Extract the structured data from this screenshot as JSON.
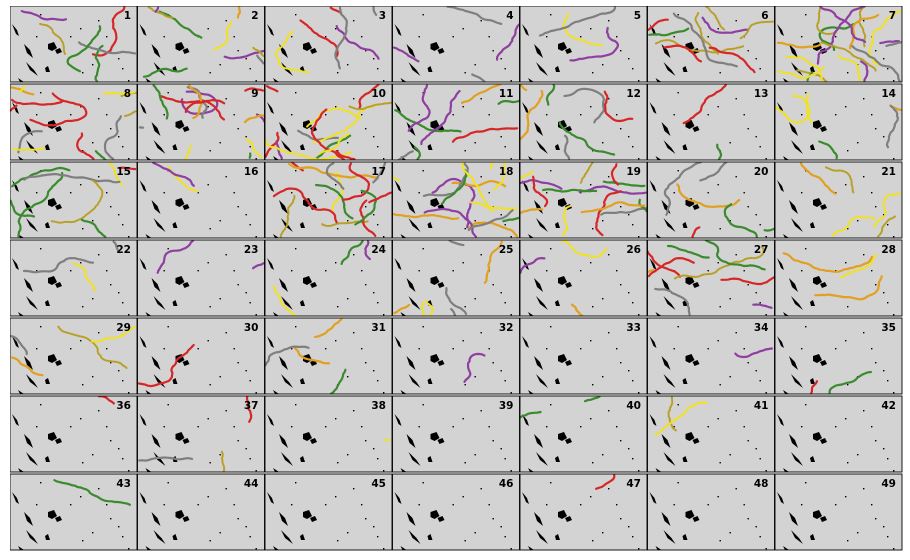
{
  "chart_data": {
    "type": "small-multiples-track-map",
    "layout": {
      "rows": 7,
      "columns": 7
    },
    "panel_labels": [
      "1",
      "2",
      "3",
      "4",
      "5",
      "6",
      "7",
      "8",
      "9",
      "10",
      "11",
      "12",
      "13",
      "14",
      "15",
      "16",
      "17",
      "18",
      "19",
      "20",
      "21",
      "22",
      "23",
      "24",
      "25",
      "26",
      "27",
      "28",
      "29",
      "30",
      "31",
      "32",
      "33",
      "34",
      "35",
      "36",
      "37",
      "38",
      "39",
      "40",
      "41",
      "42",
      "43",
      "44",
      "45",
      "46",
      "47",
      "48",
      "49"
    ],
    "track_counts": [
      6,
      9,
      6,
      4,
      3,
      10,
      18,
      13,
      13,
      13,
      8,
      7,
      2,
      5,
      8,
      2,
      13,
      14,
      14,
      6,
      5,
      3,
      2,
      3,
      7,
      3,
      9,
      3,
      4,
      1,
      4,
      1,
      0,
      1,
      2,
      1,
      3,
      1,
      0,
      2,
      2,
      0,
      1,
      0,
      0,
      0,
      1,
      0,
      0
    ],
    "track_colors": [
      "#7f7f7f",
      "#f2e21c",
      "#b8a028",
      "#e0a020",
      "#3a8a2e",
      "#d62728",
      "#8e3fa0"
    ],
    "background": "#d3d3d3",
    "land_color": "#000000",
    "axes": "none",
    "legend": "none",
    "grid": false
  }
}
